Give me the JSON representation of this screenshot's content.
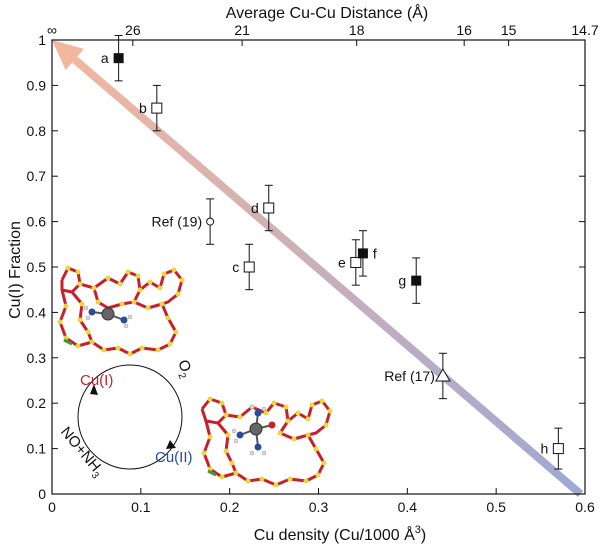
{
  "chart_data": {
    "type": "scatter",
    "xlabel": "Cu density (Cu/1000 Å",
    "xlabel_sup": "3",
    "xlabel_close": ")",
    "ylabel": "Cu(I) Fraction",
    "top_axis_label": "Average Cu-Cu Distance (Å)",
    "xlim": [
      0,
      0.6
    ],
    "ylim": [
      0,
      1
    ],
    "x_ticks": [
      0,
      0.1,
      0.2,
      0.3,
      0.4,
      0.5,
      0.6
    ],
    "x_tick_labels": [
      "0",
      "0.1",
      "0.2",
      "0.3",
      "0.4",
      "0.5",
      "0.6"
    ],
    "y_ticks": [
      0,
      0.1,
      0.2,
      0.3,
      0.4,
      0.5,
      0.6,
      0.7,
      0.8,
      0.9,
      1
    ],
    "y_tick_labels": [
      "0",
      "0.1",
      "0.2",
      "0.3",
      "0.4",
      "0.5",
      "0.6",
      "0.7",
      "0.8",
      "0.9",
      "1"
    ],
    "top_ticks": [
      {
        "x": 0,
        "label": "∞"
      },
      {
        "x": 0.091,
        "label": "26"
      },
      {
        "x": 0.214,
        "label": "21"
      },
      {
        "x": 0.343,
        "label": "18"
      },
      {
        "x": 0.464,
        "label": "16"
      },
      {
        "x": 0.514,
        "label": "15"
      },
      {
        "x": 0.6,
        "label": "14.7"
      }
    ],
    "points": [
      {
        "label": "a",
        "x": 0.075,
        "y": 0.96,
        "err": 0.05,
        "marker": "square-filled",
        "label_side": "left"
      },
      {
        "label": "b",
        "x": 0.118,
        "y": 0.85,
        "err": 0.05,
        "marker": "square-open",
        "label_side": "left"
      },
      {
        "label": "c",
        "x": 0.222,
        "y": 0.5,
        "err": 0.05,
        "marker": "square-open",
        "label_side": "left"
      },
      {
        "label": "d",
        "x": 0.244,
        "y": 0.63,
        "err": 0.05,
        "marker": "square-open",
        "label_side": "left"
      },
      {
        "label": "e",
        "x": 0.342,
        "y": 0.51,
        "err": 0.05,
        "marker": "square-open",
        "label_side": "left"
      },
      {
        "label": "f",
        "x": 0.35,
        "y": 0.53,
        "err": 0.05,
        "marker": "square-filled",
        "label_side": "right"
      },
      {
        "label": "g",
        "x": 0.41,
        "y": 0.47,
        "err": 0.05,
        "marker": "square-filled",
        "label_side": "left"
      },
      {
        "label": "h",
        "x": 0.57,
        "y": 0.1,
        "err": 0.045,
        "marker": "square-open",
        "label_side": "left"
      },
      {
        "label": "Ref (19)",
        "x": 0.178,
        "y": 0.6,
        "err": 0.05,
        "marker": "circle-open",
        "label_side": "left"
      },
      {
        "label": "Ref (17)",
        "x": 0.44,
        "y": 0.26,
        "err": 0.05,
        "marker": "triangle-open",
        "label_side": "left"
      }
    ],
    "trend_arrow": {
      "from": [
        0.595,
        0.0
      ],
      "to": [
        0.0,
        1.0
      ],
      "color_start": "#9fa7d6",
      "color_end": "#f2b79f"
    },
    "cycle_labels": {
      "cu1": "Cu(I)",
      "cu2": "Cu(II)",
      "o2": "O",
      "o2_sub": "2",
      "no": "NO+NH",
      "no_sub": "3"
    },
    "colors": {
      "cu1": "#c8202a",
      "cu2": "#2a4b9b",
      "framework_red": "#c8202a",
      "framework_yellow": "#e8d83a"
    }
  }
}
